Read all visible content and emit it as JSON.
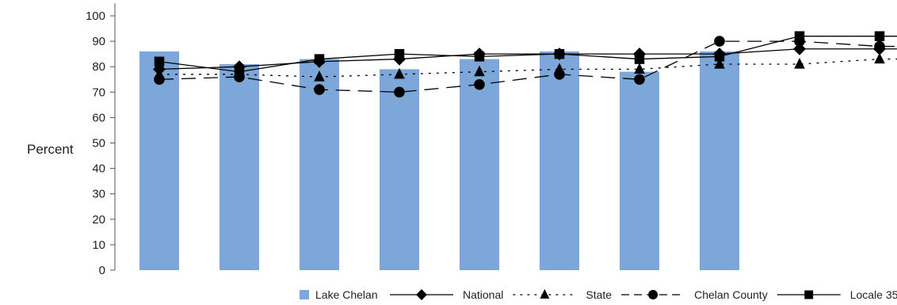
{
  "chart_data": {
    "type": "bar",
    "title": "",
    "xlabel": "",
    "ylabel": "Percent",
    "ylim": [
      0,
      100
    ],
    "yticks": [
      0,
      10,
      20,
      30,
      40,
      50,
      60,
      70,
      80,
      90,
      100
    ],
    "grid": false,
    "legend_position": "bottom",
    "bar_series": {
      "name": "Lake Chelan",
      "color": "#7da7d9",
      "values": [
        86,
        81,
        83,
        79,
        83,
        86,
        78,
        86
      ]
    },
    "line_series": [
      {
        "name": "National",
        "marker": "diamond",
        "dash": "solid",
        "values": [
          79,
          80,
          82,
          83,
          85,
          85,
          85,
          85,
          87,
          87
        ]
      },
      {
        "name": "State",
        "marker": "triangle",
        "dash": "dotted",
        "values": [
          77,
          77,
          76,
          77,
          78,
          79,
          79,
          81,
          81,
          83
        ]
      },
      {
        "name": "Chelan County",
        "marker": "circle",
        "dash": "longdash",
        "values": [
          75,
          76,
          71,
          70,
          73,
          77,
          75,
          90,
          90,
          88
        ]
      },
      {
        "name": "Locale 35",
        "marker": "square",
        "dash": "solid",
        "values": [
          82,
          78,
          83,
          85,
          84,
          85,
          83,
          84,
          92,
          92
        ]
      }
    ],
    "legend": [
      "Lake Chelan",
      "National",
      "State",
      "Chelan County",
      "Locale 35"
    ]
  }
}
